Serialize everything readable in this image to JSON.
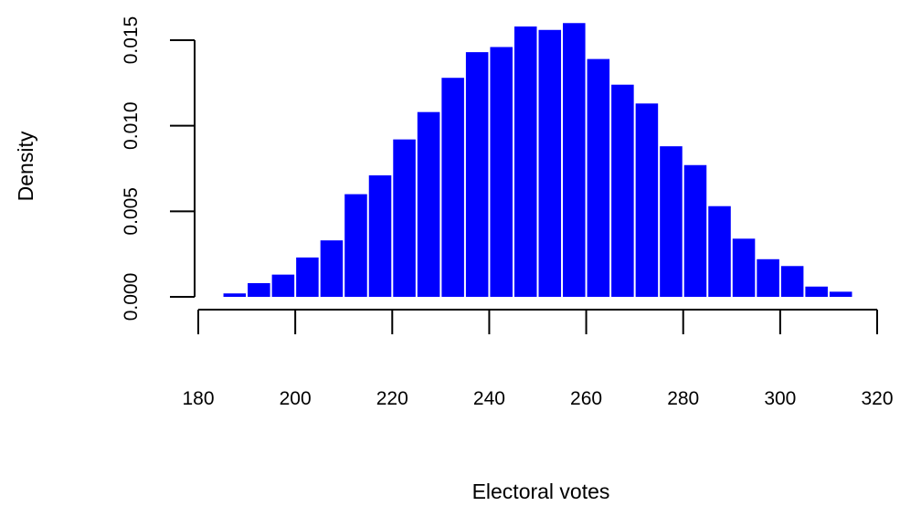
{
  "chart_data": {
    "type": "bar",
    "subtype": "histogram",
    "title": "",
    "xlabel": "Electoral votes",
    "ylabel": "Density",
    "bar_color": "#0000ff",
    "bin_width": 5,
    "x_ticks": [
      180,
      200,
      220,
      240,
      260,
      280,
      300,
      320
    ],
    "y_ticks": [
      "0.000",
      "0.005",
      "0.010",
      "0.015"
    ],
    "y_tick_values": [
      0,
      0.005,
      0.01,
      0.015
    ],
    "xlim": [
      180,
      320
    ],
    "ylim": [
      0,
      0.015
    ],
    "bins": [
      {
        "start": 185,
        "end": 190,
        "density": 0.0002
      },
      {
        "start": 190,
        "end": 195,
        "density": 0.0008
      },
      {
        "start": 195,
        "end": 200,
        "density": 0.0013
      },
      {
        "start": 200,
        "end": 205,
        "density": 0.0023
      },
      {
        "start": 205,
        "end": 210,
        "density": 0.0033
      },
      {
        "start": 210,
        "end": 215,
        "density": 0.006
      },
      {
        "start": 215,
        "end": 220,
        "density": 0.0071
      },
      {
        "start": 220,
        "end": 225,
        "density": 0.0092
      },
      {
        "start": 225,
        "end": 230,
        "density": 0.0108
      },
      {
        "start": 230,
        "end": 235,
        "density": 0.0128
      },
      {
        "start": 235,
        "end": 240,
        "density": 0.0143
      },
      {
        "start": 240,
        "end": 245,
        "density": 0.0146
      },
      {
        "start": 245,
        "end": 250,
        "density": 0.0158
      },
      {
        "start": 250,
        "end": 255,
        "density": 0.0156
      },
      {
        "start": 255,
        "end": 260,
        "density": 0.016
      },
      {
        "start": 260,
        "end": 265,
        "density": 0.0139
      },
      {
        "start": 265,
        "end": 270,
        "density": 0.0124
      },
      {
        "start": 270,
        "end": 275,
        "density": 0.0113
      },
      {
        "start": 275,
        "end": 280,
        "density": 0.0088
      },
      {
        "start": 280,
        "end": 285,
        "density": 0.0077
      },
      {
        "start": 285,
        "end": 290,
        "density": 0.0053
      },
      {
        "start": 290,
        "end": 295,
        "density": 0.0034
      },
      {
        "start": 295,
        "end": 300,
        "density": 0.0022
      },
      {
        "start": 300,
        "end": 305,
        "density": 0.0018
      },
      {
        "start": 305,
        "end": 310,
        "density": 0.0006
      },
      {
        "start": 310,
        "end": 315,
        "density": 0.0003
      }
    ]
  }
}
